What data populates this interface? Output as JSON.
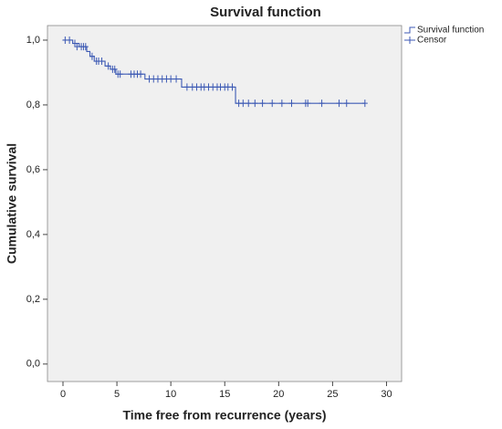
{
  "chart_data": {
    "type": "survival",
    "title": "Survival function",
    "x_label": "Time free from recurrence (years)",
    "y_label": "Cumulative survival",
    "xlim": [
      -1.44,
      31.4
    ],
    "ylim": [
      -0.054,
      1.045
    ],
    "xticks": [
      0,
      5,
      10,
      15,
      20,
      25,
      30
    ],
    "yticks": [
      {
        "value": 0,
        "label": "0,0"
      },
      {
        "value": 0.2,
        "label": "0,2"
      },
      {
        "value": 0.4,
        "label": "0,4"
      },
      {
        "value": 0.6,
        "label": "0,6"
      },
      {
        "value": 0.8,
        "label": "0,8"
      },
      {
        "value": 1.0,
        "label": "1,0"
      }
    ],
    "grid": false,
    "series": [
      {
        "name": "Survival function",
        "color": "#3d5ab4",
        "kind": "step",
        "x": [
          0,
          0.9,
          1.5,
          2.2,
          2.5,
          2.9,
          3.9,
          4.4,
          4.9,
          7.6,
          11.0,
          16.0,
          28.0
        ],
        "values": [
          1.0,
          0.99,
          0.98,
          0.965,
          0.95,
          0.935,
          0.92,
          0.91,
          0.895,
          0.88,
          0.855,
          0.805,
          0.805
        ]
      },
      {
        "name": "Censor",
        "color": "#3d5ab4",
        "kind": "censor",
        "x": [
          0.2,
          0.6,
          1.1,
          1.3,
          1.7,
          1.9,
          2.1,
          2.7,
          3.1,
          3.3,
          3.6,
          4.2,
          4.6,
          4.8,
          5.1,
          5.3,
          6.3,
          6.6,
          6.9,
          7.2,
          8.0,
          8.4,
          8.8,
          9.2,
          9.6,
          10.0,
          10.5,
          11.5,
          12.0,
          12.4,
          12.8,
          13.1,
          13.5,
          13.9,
          14.3,
          14.6,
          15.0,
          15.3,
          15.7,
          16.3,
          16.7,
          17.2,
          17.8,
          18.5,
          19.4,
          20.3,
          21.2,
          22.5,
          22.7,
          24.0,
          25.6,
          26.3,
          28.0
        ],
        "values": [
          1.0,
          1.0,
          0.99,
          0.98,
          0.98,
          0.98,
          0.98,
          0.95,
          0.935,
          0.935,
          0.935,
          0.92,
          0.91,
          0.91,
          0.895,
          0.895,
          0.895,
          0.895,
          0.895,
          0.895,
          0.88,
          0.88,
          0.88,
          0.88,
          0.88,
          0.88,
          0.88,
          0.855,
          0.855,
          0.855,
          0.855,
          0.855,
          0.855,
          0.855,
          0.855,
          0.855,
          0.855,
          0.855,
          0.855,
          0.805,
          0.805,
          0.805,
          0.805,
          0.805,
          0.805,
          0.805,
          0.805,
          0.805,
          0.805,
          0.805,
          0.805,
          0.805,
          0.805
        ]
      }
    ]
  }
}
